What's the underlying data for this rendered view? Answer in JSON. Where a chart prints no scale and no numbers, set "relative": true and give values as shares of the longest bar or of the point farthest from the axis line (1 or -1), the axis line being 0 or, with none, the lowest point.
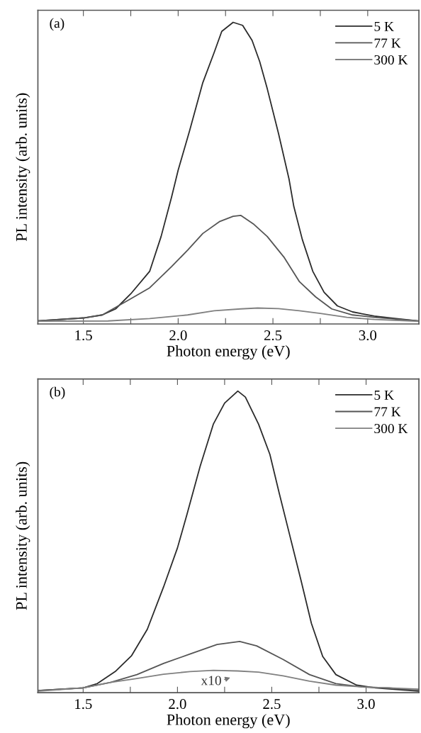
{
  "chart_data": [
    {
      "type": "line",
      "title": "(a)",
      "xlabel": "Photon energy (eV)",
      "ylabel": "PL intensity (arb. units)",
      "relative": true,
      "legend": "top right",
      "xlim": [
        1.26,
        3.27
      ],
      "xticks": [
        {
          "value": 1.5,
          "label": "1.5"
        },
        {
          "value": 1.75,
          "label": null
        },
        {
          "value": 2.0,
          "label": "2.0"
        },
        {
          "value": 2.25,
          "label": null
        },
        {
          "value": 2.5,
          "label": "2.5"
        },
        {
          "value": 2.75,
          "label": null
        },
        {
          "value": 3.0,
          "label": "3.0"
        }
      ],
      "series": [
        {
          "name": "5 K",
          "color": "#2b2b2b",
          "x": [
            1.26,
            1.5,
            1.6,
            1.67,
            1.75,
            1.85,
            1.91,
            1.965,
            2.0,
            2.06,
            2.13,
            2.19,
            2.23,
            2.29,
            2.34,
            2.39,
            2.43,
            2.47,
            2.53,
            2.585,
            2.61,
            2.655,
            2.71,
            2.77,
            2.84,
            2.92,
            3.035,
            3.15,
            3.27
          ],
          "values": [
            0.01,
            0.02,
            0.03,
            0.05,
            0.1,
            0.175,
            0.29,
            0.42,
            0.51,
            0.64,
            0.8,
            0.9,
            0.97,
            1.0,
            0.99,
            0.94,
            0.87,
            0.78,
            0.63,
            0.48,
            0.39,
            0.28,
            0.175,
            0.105,
            0.06,
            0.04,
            0.026,
            0.018,
            0.01
          ]
        },
        {
          "name": "77 K",
          "color": "#555555",
          "x": [
            1.26,
            1.5,
            1.6,
            1.74,
            1.85,
            1.965,
            2.05,
            2.13,
            2.22,
            2.29,
            2.33,
            2.4,
            2.47,
            2.56,
            2.64,
            2.725,
            2.81,
            2.92,
            3.035,
            3.27
          ],
          "values": [
            0.01,
            0.02,
            0.03,
            0.08,
            0.12,
            0.19,
            0.245,
            0.3,
            0.34,
            0.357,
            0.36,
            0.33,
            0.29,
            0.22,
            0.14,
            0.09,
            0.05,
            0.03,
            0.022,
            0.01
          ]
        },
        {
          "name": "300 K",
          "color": "#808080",
          "x": [
            1.26,
            1.63,
            1.85,
            2.05,
            2.19,
            2.33,
            2.42,
            2.53,
            2.64,
            2.75,
            2.89,
            3.035,
            3.27
          ],
          "values": [
            0.009,
            0.01,
            0.018,
            0.03,
            0.044,
            0.05,
            0.053,
            0.051,
            0.044,
            0.035,
            0.022,
            0.015,
            0.009
          ]
        }
      ]
    },
    {
      "type": "line",
      "title": "(b)",
      "xlabel": "Photon energy (eV)",
      "ylabel": "PL intensity (arb. units)",
      "relative": true,
      "legend": "top right",
      "xlim": [
        1.26,
        3.28
      ],
      "xticks": [
        {
          "value": 1.5,
          "label": "1.5"
        },
        {
          "value": 1.75,
          "label": null
        },
        {
          "value": 2.0,
          "label": "2.0"
        },
        {
          "value": 2.25,
          "label": null
        },
        {
          "value": 2.5,
          "label": "2.5"
        },
        {
          "value": 2.75,
          "label": null
        },
        {
          "value": 3.0,
          "label": "3.0"
        }
      ],
      "annotations": [
        "x10"
      ],
      "series": [
        {
          "name": "5 K",
          "color": "#2b2b2b",
          "x": [
            1.26,
            1.5,
            1.575,
            1.67,
            1.757,
            1.84,
            1.926,
            2.0,
            2.05,
            2.12,
            2.19,
            2.25,
            2.32,
            2.36,
            2.43,
            2.49,
            2.54,
            2.6,
            2.656,
            2.71,
            2.77,
            2.84,
            2.95,
            3.05,
            3.28
          ],
          "values": [
            0.007,
            0.016,
            0.03,
            0.07,
            0.123,
            0.21,
            0.35,
            0.48,
            0.59,
            0.75,
            0.89,
            0.96,
            1.0,
            0.98,
            0.89,
            0.79,
            0.66,
            0.51,
            0.37,
            0.23,
            0.12,
            0.06,
            0.025,
            0.016,
            0.005
          ]
        },
        {
          "name": "77 K",
          "color": "#555555",
          "x": [
            1.26,
            1.5,
            1.645,
            1.785,
            1.926,
            2.066,
            2.21,
            2.33,
            2.42,
            2.56,
            2.7,
            2.84,
            2.98,
            3.12,
            3.28
          ],
          "values": [
            0.007,
            0.016,
            0.034,
            0.06,
            0.097,
            0.128,
            0.16,
            0.17,
            0.155,
            0.11,
            0.06,
            0.03,
            0.019,
            0.016,
            0.007
          ]
        },
        {
          "name": "300 K",
          "color": "#808080",
          "x": [
            1.26,
            1.5,
            1.645,
            1.785,
            1.926,
            2.066,
            2.19,
            2.32,
            2.43,
            2.56,
            2.7,
            2.84,
            2.98,
            3.12,
            3.28
          ],
          "values": [
            0.005,
            0.016,
            0.034,
            0.047,
            0.061,
            0.07,
            0.074,
            0.072,
            0.068,
            0.056,
            0.038,
            0.025,
            0.019,
            0.016,
            0.012
          ]
        }
      ]
    }
  ]
}
